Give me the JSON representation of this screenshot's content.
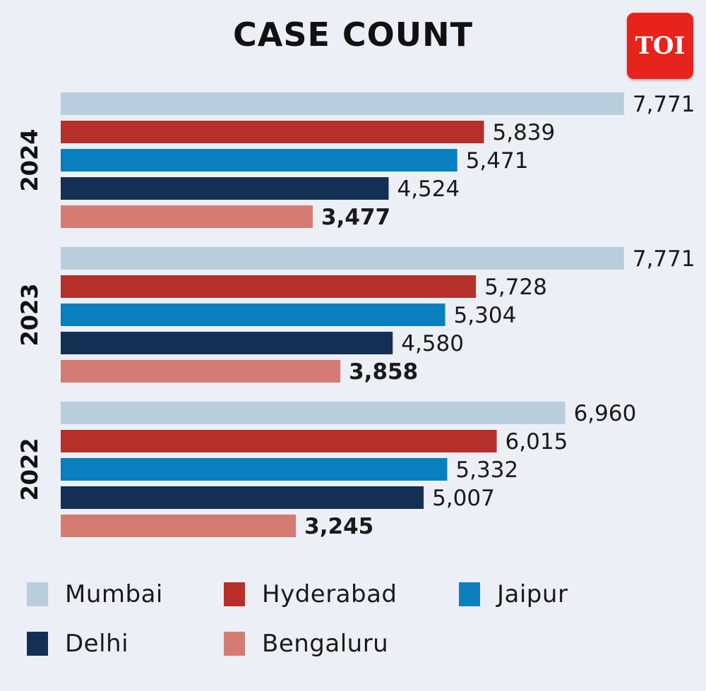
{
  "chart_data": {
    "type": "bar",
    "orientation": "horizontal",
    "title": "CASE COUNT",
    "groups": [
      "2024",
      "2023",
      "2022"
    ],
    "series": [
      {
        "name": "Mumbai",
        "color": "#b9cedd",
        "values": [
          7771,
          7771,
          6960
        ]
      },
      {
        "name": "Hyderabad",
        "color": "#b5302a",
        "values": [
          5839,
          5728,
          6015
        ]
      },
      {
        "name": "Jaipur",
        "color": "#0a7fc0",
        "values": [
          5471,
          5304,
          5332
        ]
      },
      {
        "name": "Delhi",
        "color": "#142f54",
        "values": [
          4524,
          4580,
          5007
        ]
      },
      {
        "name": "Bengaluru",
        "color": "#d47b74",
        "values": [
          3477,
          3858,
          3245
        ]
      }
    ],
    "value_labels": [
      [
        "7,771",
        "5,839",
        "5,471",
        "4,524",
        "3,477"
      ],
      [
        "7,771",
        "5,728",
        "5,304",
        "4,580",
        "3,858"
      ],
      [
        "6,960",
        "6,015",
        "5,332",
        "5,007",
        "3,245"
      ]
    ],
    "highlighted_series": "Bengaluru",
    "legend_position": "bottom",
    "grid": false
  },
  "logo_text": "TOI"
}
